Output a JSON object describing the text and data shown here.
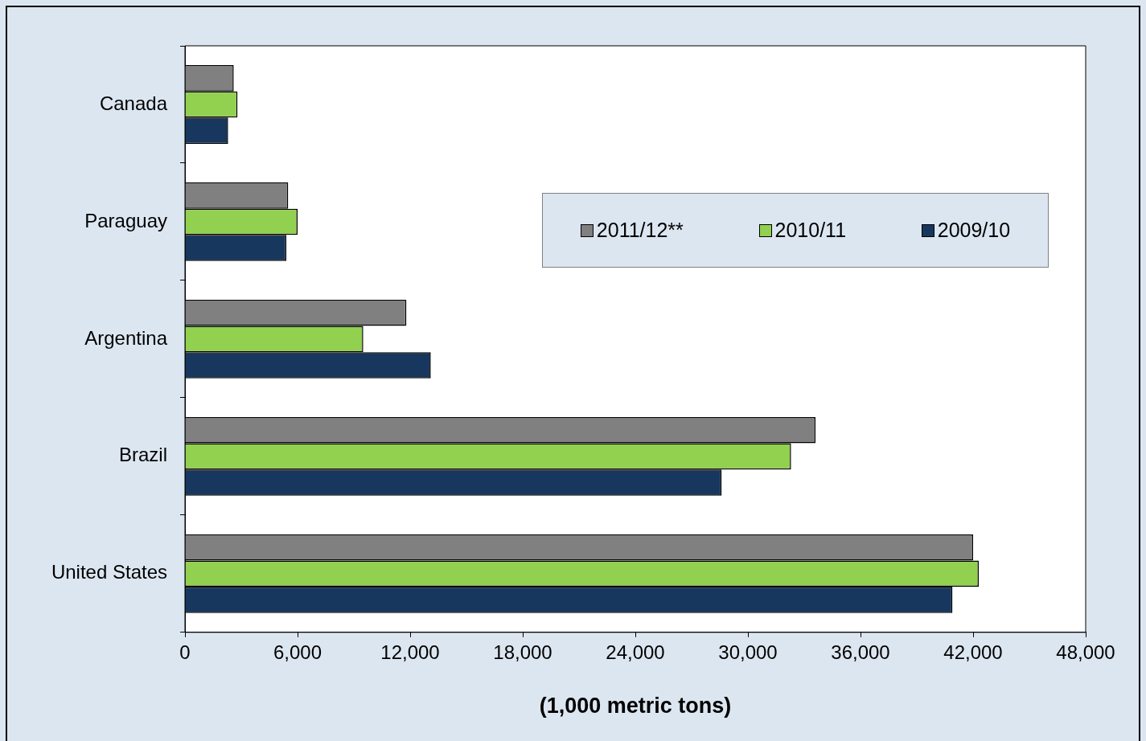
{
  "chart_data": {
    "type": "bar",
    "orientation": "horizontal",
    "xlabel": "(1,000 metric tons)",
    "categories": [
      "Canada",
      "Paraguay",
      "Argentina",
      "Brazil",
      "United States"
    ],
    "series": [
      {
        "name": "2011/12**",
        "color": "#808080",
        "values": [
          2600,
          5500,
          11800,
          33600,
          42000
        ]
      },
      {
        "name": "2010/11",
        "color": "#92d050",
        "values": [
          2800,
          6000,
          9500,
          32300,
          42300
        ]
      },
      {
        "name": "2009/10",
        "color": "#17375e",
        "values": [
          2300,
          5400,
          13100,
          28600,
          40900
        ]
      }
    ],
    "xlim": [
      0,
      48000
    ],
    "xticks": [
      {
        "value": 0,
        "label": "0"
      },
      {
        "value": 6000,
        "label": "6,000"
      },
      {
        "value": 12000,
        "label": "12,000"
      },
      {
        "value": 18000,
        "label": "18,000"
      },
      {
        "value": 24000,
        "label": "24,000"
      },
      {
        "value": 30000,
        "label": "30,000"
      },
      {
        "value": 36000,
        "label": "36,000"
      },
      {
        "value": 42000,
        "label": "42,000"
      },
      {
        "value": 48000,
        "label": "48,000"
      }
    ],
    "grid": false,
    "legend": "top right"
  }
}
